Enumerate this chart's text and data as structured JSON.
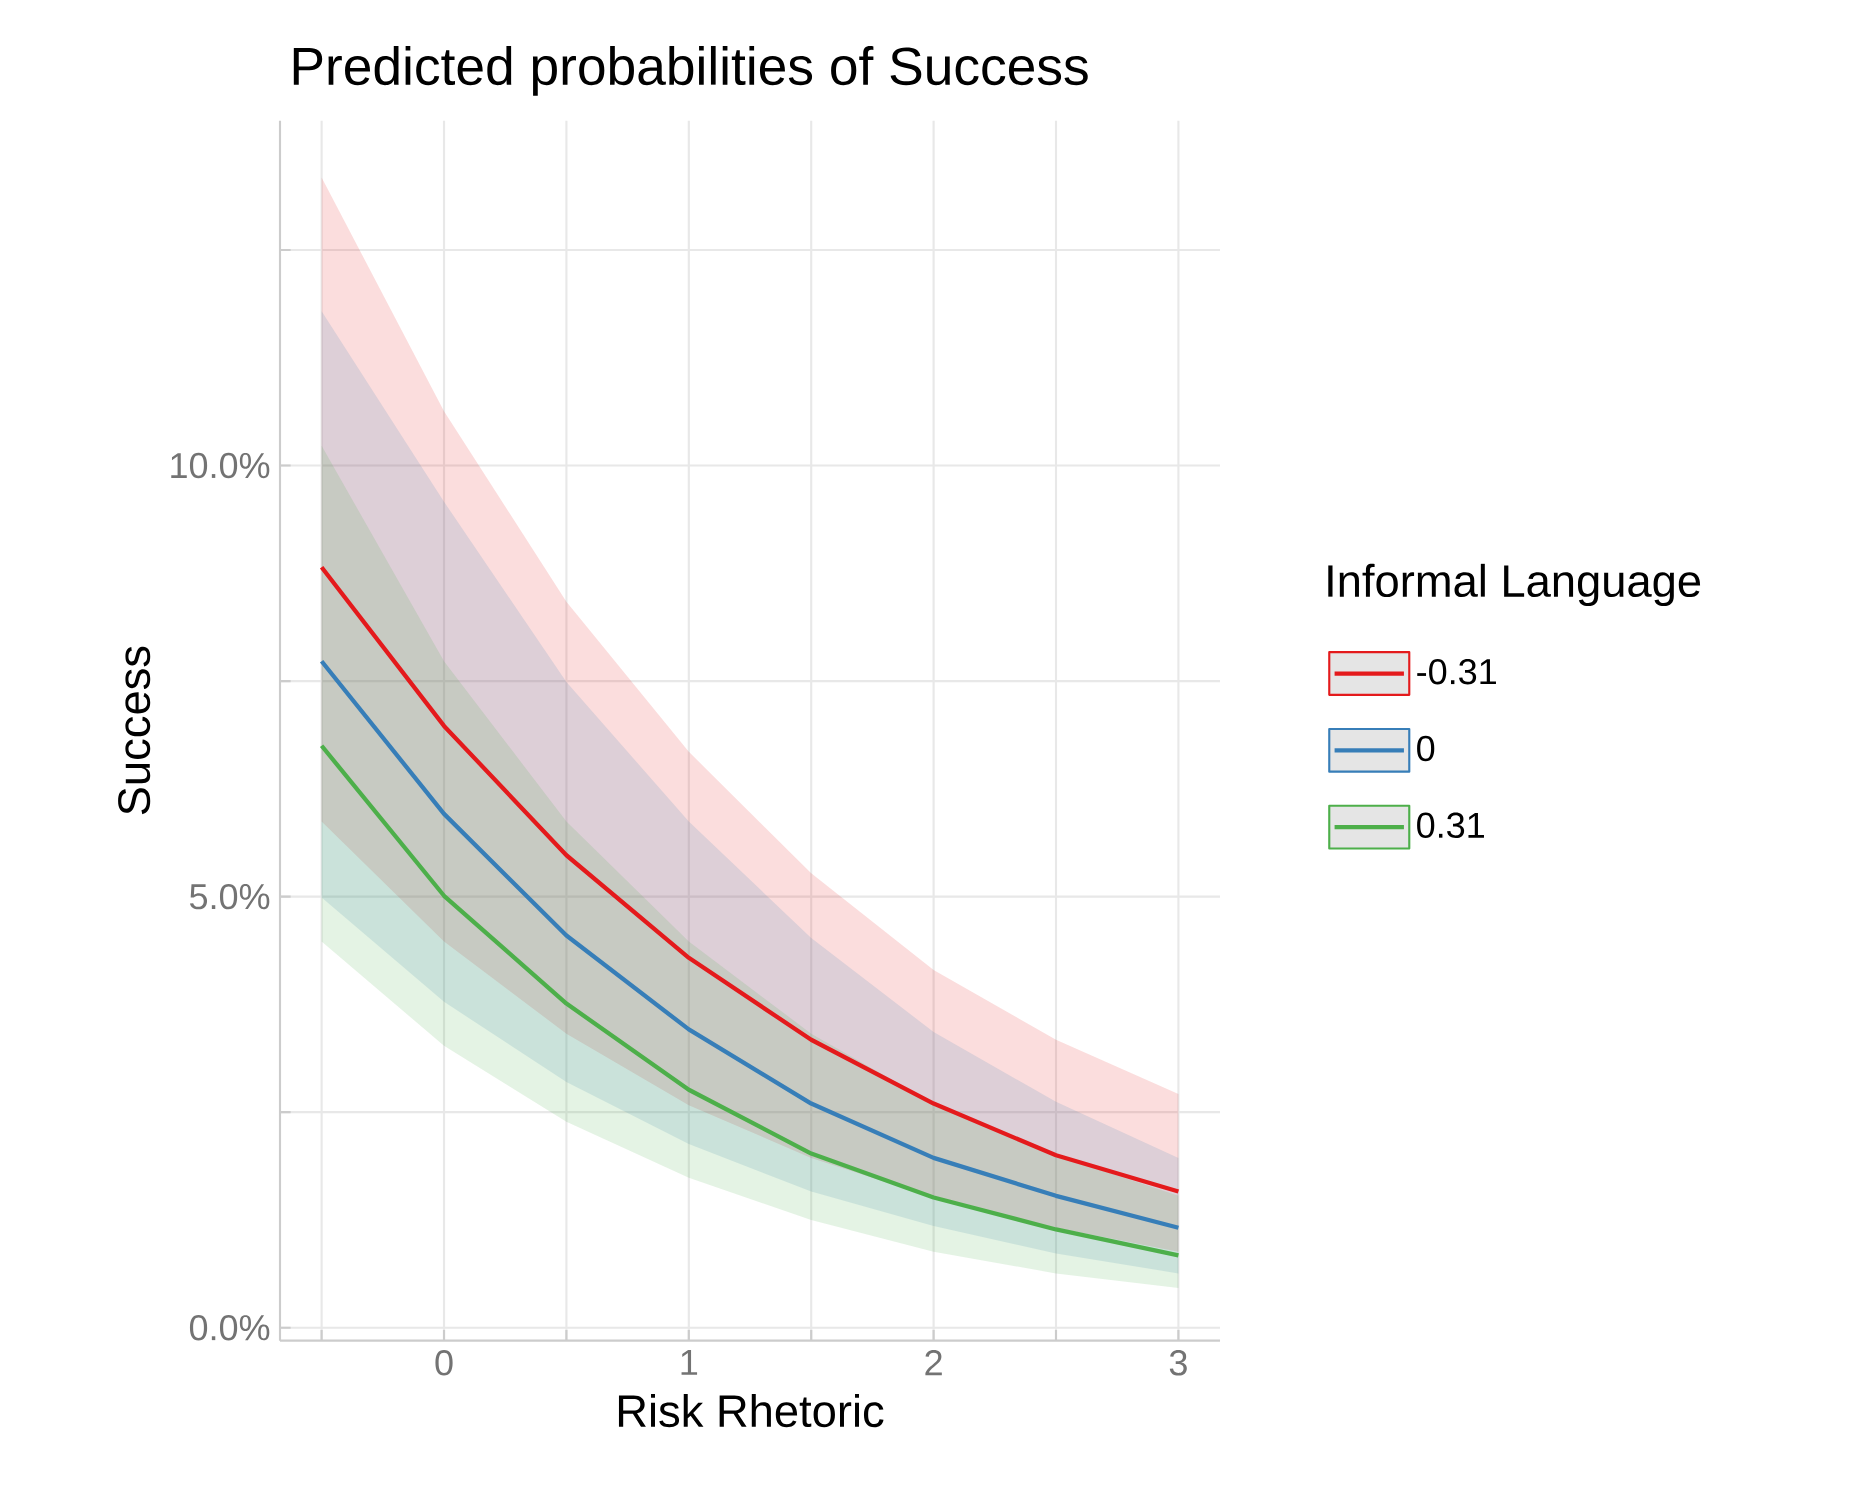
{
  "chart_data": {
    "type": "line",
    "title": "Predicted probabilities of Success",
    "xlabel": "Risk Rhetoric",
    "ylabel": "Success",
    "legend_title": "Informal Language",
    "legend": "right",
    "grid": true,
    "x": [
      -0.5,
      0,
      0.5,
      1,
      1.5,
      2,
      2.5,
      3
    ],
    "xlim": [
      -0.67,
      3.17
    ],
    "ylim": [
      -0.15,
      14
    ],
    "xticks": [
      {
        "value": -0.5,
        "label": null
      },
      0,
      {
        "value": 0.5,
        "label": null
      },
      1,
      {
        "value": 1.5,
        "label": null
      },
      2,
      {
        "value": 2.5,
        "label": null
      },
      3
    ],
    "yticks": [
      {
        "value": 0,
        "label": "0.0%"
      },
      {
        "value": 2.5,
        "label": null
      },
      {
        "value": 5,
        "label": "5.0%"
      },
      {
        "value": 7.5,
        "label": null
      },
      {
        "value": 10,
        "label": "10.0%"
      },
      {
        "value": 12.5,
        "label": null
      }
    ],
    "series": [
      {
        "name": "-0.31",
        "color": "#e41a1c",
        "values": [
          8.82,
          6.98,
          5.48,
          4.29,
          3.34,
          2.6,
          2.0,
          1.58
        ],
        "upper": [
          13.34,
          10.63,
          8.42,
          6.68,
          5.27,
          4.15,
          3.34,
          2.71
        ],
        "lower": [
          5.87,
          4.48,
          3.41,
          2.58,
          1.97,
          1.51,
          1.16,
          0.88
        ]
      },
      {
        "name": "0",
        "color": "#377eb8",
        "values": [
          7.73,
          5.96,
          4.55,
          3.46,
          2.6,
          1.97,
          1.53,
          1.16
        ],
        "upper": [
          11.79,
          9.58,
          7.49,
          5.87,
          4.52,
          3.43,
          2.62,
          1.97
        ],
        "lower": [
          4.99,
          3.78,
          2.85,
          2.13,
          1.58,
          1.18,
          0.86,
          0.63
        ]
      },
      {
        "name": "0.31",
        "color": "#4daf4a",
        "values": [
          6.75,
          5.01,
          3.76,
          2.76,
          2.02,
          1.51,
          1.14,
          0.84
        ],
        "upper": [
          10.23,
          7.73,
          5.87,
          4.48,
          3.41,
          2.6,
          2.0,
          1.53
        ],
        "lower": [
          4.48,
          3.27,
          2.39,
          1.74,
          1.25,
          0.88,
          0.63,
          0.46
        ]
      }
    ]
  }
}
